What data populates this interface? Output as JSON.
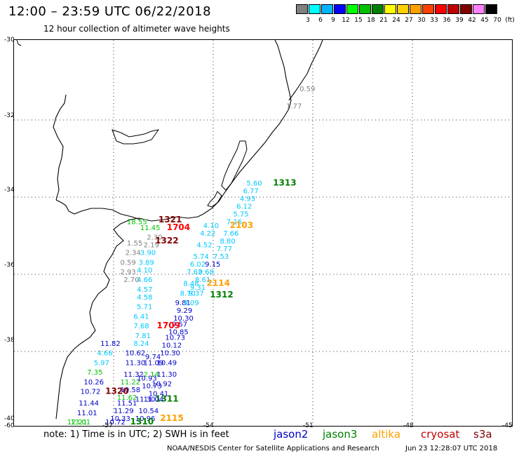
{
  "header": {
    "title": "12:00 – 23:59 UTC 06/22/2018",
    "subtitle": "12 hour collection of altimeter wave heights"
  },
  "color_scale": {
    "labels": [
      "3",
      "6",
      "9",
      "12",
      "15",
      "18",
      "21",
      "24",
      "27",
      "30",
      "33",
      "36",
      "39",
      "42",
      "45",
      "70",
      "(ft)"
    ],
    "colors": [
      "#808080",
      "#00ffff",
      "#00b4ff",
      "#0000ff",
      "#00ff00",
      "#00c000",
      "#008000",
      "#ffff00",
      "#ffd000",
      "#ffa000",
      "#ff4000",
      "#ff0000",
      "#c00000",
      "#800000",
      "#ff80ff",
      "#000000"
    ]
  },
  "axes": {
    "lat_labels": [
      "-30",
      "-32",
      "-34",
      "-36",
      "-38",
      "-40"
    ],
    "lon_labels": [
      "-60",
      "-57",
      "-54",
      "-51",
      "-48",
      "-45"
    ]
  },
  "footer": {
    "note": "note: 1) Time is in UTC; 2) SWH is in feet",
    "credit": "NOAA/NESDIS Center for Satellite Applications and Research",
    "timestamp": "Jun 23 12:28:07 UTC 2018"
  },
  "legend": [
    {
      "name": "jason2",
      "color": "#0000c8"
    },
    {
      "name": "jason3",
      "color": "#008000"
    },
    {
      "name": "altika",
      "color": "#ffa000"
    },
    {
      "name": "cryosat",
      "color": "#c00000"
    },
    {
      "name": "s3a",
      "color": "#800000"
    }
  ],
  "observations": [
    {
      "text": "0.59",
      "color": "#808080",
      "lat": -31.25,
      "lon": -51.4
    },
    {
      "text": "1.77",
      "color": "#808080",
      "lat": -31.7,
      "lon": -51.8
    },
    {
      "text": "5.60",
      "color": "#00c8ff",
      "lat": -33.7,
      "lon": -53.0
    },
    {
      "text": "1313",
      "color": "#008000",
      "lat": -33.7,
      "lon": -52.2
    },
    {
      "text": "6.77",
      "color": "#00c8ff",
      "lat": -33.9,
      "lon": -53.1
    },
    {
      "text": "4.93",
      "color": "#00c8ff",
      "lat": -34.1,
      "lon": -53.2
    },
    {
      "text": "6.12",
      "color": "#00c8ff",
      "lat": -34.3,
      "lon": -53.3
    },
    {
      "text": "5.75",
      "color": "#00c8ff",
      "lat": -34.5,
      "lon": -53.4
    },
    {
      "text": "7.16",
      "color": "#00c8ff",
      "lat": -34.7,
      "lon": -53.6
    },
    {
      "text": "2103",
      "color": "#ffa000",
      "lat": -34.8,
      "lon": -53.5
    },
    {
      "text": "4.10",
      "color": "#00c8ff",
      "lat": -34.8,
      "lon": -54.3
    },
    {
      "text": "7.66",
      "color": "#00c8ff",
      "lat": -35.0,
      "lon": -53.7
    },
    {
      "text": "4.22",
      "color": "#00c8ff",
      "lat": -35.0,
      "lon": -54.4
    },
    {
      "text": "8.80",
      "color": "#00c8ff",
      "lat": -35.2,
      "lon": -53.8
    },
    {
      "text": "4.52",
      "color": "#00c8ff",
      "lat": -35.3,
      "lon": -54.5
    },
    {
      "text": "7.77",
      "color": "#00c8ff",
      "lat": -35.4,
      "lon": -53.9
    },
    {
      "text": "5.74",
      "color": "#00c8ff",
      "lat": -35.6,
      "lon": -54.6
    },
    {
      "text": "7.53",
      "color": "#00c8ff",
      "lat": -35.6,
      "lon": -54.0
    },
    {
      "text": "6.02",
      "color": "#00c8ff",
      "lat": -35.8,
      "lon": -54.7
    },
    {
      "text": "9.15",
      "color": "#0000c8",
      "lat": -35.8,
      "lon": -54.25
    },
    {
      "text": "7.62",
      "color": "#00c8ff",
      "lat": -36.0,
      "lon": -54.8
    },
    {
      "text": "9.68",
      "color": "#00c8ff",
      "lat": -36.0,
      "lon": -54.45
    },
    {
      "text": "8.61",
      "color": "#00c8ff",
      "lat": -36.2,
      "lon": -54.55
    },
    {
      "text": "8.48",
      "color": "#00c8ff",
      "lat": -36.3,
      "lon": -54.9
    },
    {
      "text": "2114",
      "color": "#ffa000",
      "lat": -36.3,
      "lon": -54.2
    },
    {
      "text": "9.31",
      "color": "#00c8ff",
      "lat": -36.4,
      "lon": -54.7
    },
    {
      "text": "8.70",
      "color": "#00c8ff",
      "lat": -36.55,
      "lon": -55.0
    },
    {
      "text": "9.37",
      "color": "#00c8ff",
      "lat": -36.55,
      "lon": -54.75
    },
    {
      "text": "1312",
      "color": "#008000",
      "lat": -36.6,
      "lon": -54.1
    },
    {
      "text": "9.81",
      "color": "#0000c8",
      "lat": -36.8,
      "lon": -55.15
    },
    {
      "text": "9.09",
      "color": "#00c8ff",
      "lat": -36.8,
      "lon": -54.9
    },
    {
      "text": "9.29",
      "color": "#0000c8",
      "lat": -37.0,
      "lon": -55.1
    },
    {
      "text": "10.30",
      "color": "#0000c8",
      "lat": -37.2,
      "lon": -55.2
    },
    {
      "text": "9.57",
      "color": "#0000c8",
      "lat": -37.35,
      "lon": -55.25
    },
    {
      "text": "1709",
      "color": "#ff0000",
      "lat": -37.4,
      "lon": -55.7
    },
    {
      "text": "10.85",
      "color": "#0000c8",
      "lat": -37.55,
      "lon": -55.35
    },
    {
      "text": "10.73",
      "color": "#0000c8",
      "lat": -37.7,
      "lon": -55.45
    },
    {
      "text": "10.12",
      "color": "#0000c8",
      "lat": -37.9,
      "lon": -55.55
    },
    {
      "text": "10.30",
      "color": "#0000c8",
      "lat": -38.1,
      "lon": -55.6
    },
    {
      "text": "10.49",
      "color": "#0000c8",
      "lat": -38.35,
      "lon": -55.7
    },
    {
      "text": "11.30",
      "color": "#0000c8",
      "lat": -38.65,
      "lon": -55.7
    },
    {
      "text": "10.92",
      "color": "#0000c8",
      "lat": -38.9,
      "lon": -55.85
    },
    {
      "text": "10.41",
      "color": "#0000c8",
      "lat": -39.15,
      "lon": -55.95
    },
    {
      "text": "1311",
      "color": "#008000",
      "lat": -39.3,
      "lon": -55.75
    },
    {
      "text": "11.30",
      "color": "#0000c8",
      "lat": -39.3,
      "lon": -56.35
    },
    {
      "text": "10.54",
      "color": "#0000c8",
      "lat": -39.6,
      "lon": -56.25
    },
    {
      "text": "10.96",
      "color": "#0000c8",
      "lat": -39.8,
      "lon": -56.35
    },
    {
      "text": "2115",
      "color": "#ffa000",
      "lat": -39.8,
      "lon": -55.6
    },
    {
      "text": "1310",
      "color": "#008000",
      "lat": -40.0,
      "lon": -56.5
    },
    {
      "text": "10.72",
      "color": "#0000c8",
      "lat": -40.05,
      "lon": -57.25
    },
    {
      "text": "10.33",
      "color": "#0000c8",
      "lat": -39.8,
      "lon": -57.1
    },
    {
      "text": "11.29",
      "color": "#0000c8",
      "lat": -39.6,
      "lon": -57.0
    },
    {
      "text": "11.51",
      "color": "#0000c8",
      "lat": -39.4,
      "lon": -56.9
    },
    {
      "text": "11.62",
      "color": "#00c000",
      "lat": -39.25,
      "lon": -56.9
    },
    {
      "text": "10.58",
      "color": "#0000c8",
      "lat": -39.05,
      "lon": -56.8
    },
    {
      "text": "11.22",
      "color": "#00c000",
      "lat": -38.85,
      "lon": -56.8
    },
    {
      "text": "11.32",
      "color": "#0000c8",
      "lat": -38.65,
      "lon": -56.7
    },
    {
      "text": "11.30",
      "color": "#0000c8",
      "lat": -38.35,
      "lon": -56.65
    },
    {
      "text": "10.62",
      "color": "#0000c8",
      "lat": -38.1,
      "lon": -56.65
    },
    {
      "text": "8.24",
      "color": "#00c8ff",
      "lat": -37.85,
      "lon": -56.4
    },
    {
      "text": "7.81",
      "color": "#00c8ff",
      "lat": -37.65,
      "lon": -56.35
    },
    {
      "text": "7.68",
      "color": "#00c8ff",
      "lat": -37.4,
      "lon": -56.4
    },
    {
      "text": "6.41",
      "color": "#00c8ff",
      "lat": -37.15,
      "lon": -56.4
    },
    {
      "text": "5.71",
      "color": "#00c8ff",
      "lat": -36.9,
      "lon": -56.3
    },
    {
      "text": "4.58",
      "color": "#00c8ff",
      "lat": -36.65,
      "lon": -56.3
    },
    {
      "text": "4.57",
      "color": "#00c8ff",
      "lat": -36.45,
      "lon": -56.3
    },
    {
      "text": "4.66",
      "color": "#00c8ff",
      "lat": -36.2,
      "lon": -56.3
    },
    {
      "text": "4.10",
      "color": "#00c8ff",
      "lat": -35.95,
      "lon": -56.3
    },
    {
      "text": "3.89",
      "color": "#00c8ff",
      "lat": -35.75,
      "lon": -56.25
    },
    {
      "text": "3.90",
      "color": "#00c8ff",
      "lat": -35.5,
      "lon": -56.2
    },
    {
      "text": "2.19",
      "color": "#808080",
      "lat": -35.3,
      "lon": -56.1
    },
    {
      "text": "2.30",
      "color": "#808080",
      "lat": -35.1,
      "lon": -56.0
    },
    {
      "text": "11.45",
      "color": "#00c000",
      "lat": -34.85,
      "lon": -56.2
    },
    {
      "text": "18.55",
      "color": "#00c000",
      "lat": -34.7,
      "lon": -56.6
    },
    {
      "text": "1321",
      "color": "#800000",
      "lat": -34.65,
      "lon": -55.65
    },
    {
      "text": "1704",
      "color": "#ff0000",
      "lat": -34.85,
      "lon": -55.4
    },
    {
      "text": "1322",
      "color": "#800000",
      "lat": -35.2,
      "lon": -55.75
    },
    {
      "text": "1.55",
      "color": "#808080",
      "lat": -35.25,
      "lon": -56.6
    },
    {
      "text": "2.34",
      "color": "#808080",
      "lat": -35.5,
      "lon": -56.65
    },
    {
      "text": "0.59",
      "color": "#808080",
      "lat": -35.75,
      "lon": -56.8
    },
    {
      "text": "2.93",
      "color": "#808080",
      "lat": -36.0,
      "lon": -56.8
    },
    {
      "text": "2.70",
      "color": "#808080",
      "lat": -36.2,
      "lon": -56.7
    },
    {
      "text": "11.82",
      "color": "#0000c8",
      "lat": -37.85,
      "lon": -57.4
    },
    {
      "text": "4.66",
      "color": "#00c8ff",
      "lat": -38.1,
      "lon": -57.5
    },
    {
      "text": "5.97",
      "color": "#00c8ff",
      "lat": -38.35,
      "lon": -57.6
    },
    {
      "text": "7.35",
      "color": "#00c000",
      "lat": -38.6,
      "lon": -57.8
    },
    {
      "text": "10.26",
      "color": "#0000c8",
      "lat": -38.85,
      "lon": -57.9
    },
    {
      "text": "10.72",
      "color": "#0000c8",
      "lat": -39.1,
      "lon": -58.0
    },
    {
      "text": "1320",
      "color": "#800000",
      "lat": -39.1,
      "lon": -57.25
    },
    {
      "text": "11.44",
      "color": "#0000c8",
      "lat": -39.4,
      "lon": -58.05
    },
    {
      "text": "11.01",
      "color": "#0000c8",
      "lat": -39.65,
      "lon": -58.1
    },
    {
      "text": "13.01",
      "color": "#00c000",
      "lat": -39.9,
      "lon": -58.3
    },
    {
      "text": "12.21",
      "color": "#00c000",
      "lat": -40.15,
      "lon": -58.4
    },
    {
      "text": "2.14",
      "color": "#00c000",
      "lat": -38.65,
      "lon": -56.1
    },
    {
      "text": "10.73",
      "color": "#0000c8",
      "lat": -38.95,
      "lon": -56.15
    },
    {
      "text": "10.93",
      "color": "#0000c8",
      "lat": -38.75,
      "lon": -56.3
    },
    {
      "text": "11.09",
      "color": "#0000c8",
      "lat": -38.35,
      "lon": -56.1
    },
    {
      "text": "9.74",
      "color": "#0000c8",
      "lat": -38.2,
      "lon": -56.05
    },
    {
      "text": "11.04",
      "color": "#0000c8",
      "lat": -39.3,
      "lon": -56.1
    }
  ]
}
